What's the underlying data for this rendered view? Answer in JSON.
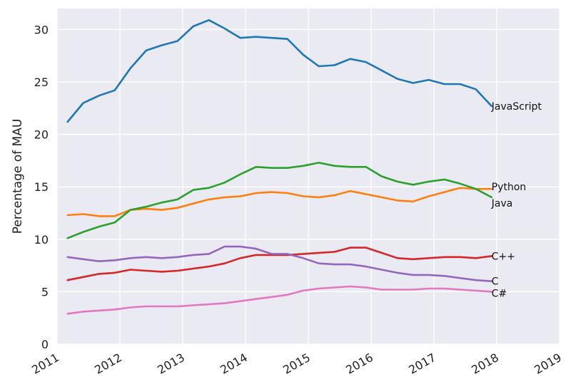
{
  "chart_data": {
    "type": "line",
    "title": "",
    "xlabel": "",
    "ylabel": "Percentage of MAU",
    "xlim": [
      2011,
      2019
    ],
    "ylim": [
      0,
      32
    ],
    "x_ticks": [
      "2011",
      "2012",
      "2013",
      "2014",
      "2015",
      "2016",
      "2017",
      "2018",
      "2019"
    ],
    "y_ticks": [
      "0",
      "5",
      "10",
      "15",
      "20",
      "25",
      "30"
    ],
    "grid": true,
    "background": "#eaeaf2",
    "x": [
      "2011-03",
      "2011-06",
      "2011-09",
      "2011-12",
      "2012-03",
      "2012-06",
      "2012-09",
      "2012-12",
      "2013-03",
      "2013-06",
      "2013-09",
      "2013-12",
      "2014-03",
      "2014-06",
      "2014-09",
      "2014-12",
      "2015-03",
      "2015-06",
      "2015-09",
      "2015-12",
      "2016-03",
      "2016-06",
      "2016-09",
      "2016-12",
      "2017-03",
      "2017-06",
      "2017-09",
      "2017-12"
    ],
    "series": [
      {
        "name": "JavaScript",
        "color": "#1f77b4",
        "values": [
          21.2,
          23.0,
          23.7,
          24.2,
          26.3,
          28.0,
          28.5,
          28.9,
          30.3,
          30.9,
          30.1,
          29.2,
          29.3,
          29.2,
          29.1,
          27.6,
          26.5,
          26.6,
          27.2,
          26.9,
          26.1,
          25.3,
          24.9,
          25.2,
          24.8,
          24.8,
          24.3,
          22.7
        ]
      },
      {
        "name": "Python",
        "color": "#ff7f0e",
        "values": [
          12.3,
          12.4,
          12.2,
          12.2,
          12.8,
          12.9,
          12.8,
          13.0,
          13.4,
          13.8,
          14.0,
          14.1,
          14.4,
          14.5,
          14.4,
          14.1,
          14.0,
          14.2,
          14.6,
          14.3,
          14.0,
          13.7,
          13.6,
          14.1,
          14.5,
          14.9,
          14.8,
          14.8
        ]
      },
      {
        "name": "Java",
        "color": "#2ca02c",
        "values": [
          10.1,
          10.7,
          11.2,
          11.6,
          12.8,
          13.1,
          13.5,
          13.8,
          14.7,
          14.9,
          15.4,
          16.2,
          16.9,
          16.8,
          16.8,
          17.0,
          17.3,
          17.0,
          16.9,
          16.9,
          16.0,
          15.5,
          15.2,
          15.5,
          15.7,
          15.3,
          14.8,
          14.0
        ]
      },
      {
        "name": "C++",
        "color": "#d62728",
        "values": [
          6.1,
          6.4,
          6.7,
          6.8,
          7.1,
          7.0,
          6.9,
          7.0,
          7.2,
          7.4,
          7.7,
          8.2,
          8.5,
          8.5,
          8.5,
          8.6,
          8.7,
          8.8,
          9.2,
          9.2,
          8.7,
          8.2,
          8.1,
          8.2,
          8.3,
          8.3,
          8.2,
          8.4
        ]
      },
      {
        "name": "C",
        "color": "#9467bd",
        "values": [
          8.3,
          8.1,
          7.9,
          8.0,
          8.2,
          8.3,
          8.2,
          8.3,
          8.5,
          8.6,
          9.3,
          9.3,
          9.1,
          8.6,
          8.6,
          8.2,
          7.7,
          7.6,
          7.6,
          7.4,
          7.1,
          6.8,
          6.6,
          6.6,
          6.5,
          6.3,
          6.1,
          6.0
        ]
      },
      {
        "name": "C#",
        "color": "#e377c2",
        "values": [
          2.9,
          3.1,
          3.2,
          3.3,
          3.5,
          3.6,
          3.6,
          3.6,
          3.7,
          3.8,
          3.9,
          4.1,
          4.3,
          4.5,
          4.7,
          5.1,
          5.3,
          5.4,
          5.5,
          5.4,
          5.2,
          5.2,
          5.2,
          5.3,
          5.3,
          5.2,
          5.1,
          5.0
        ]
      }
    ]
  }
}
